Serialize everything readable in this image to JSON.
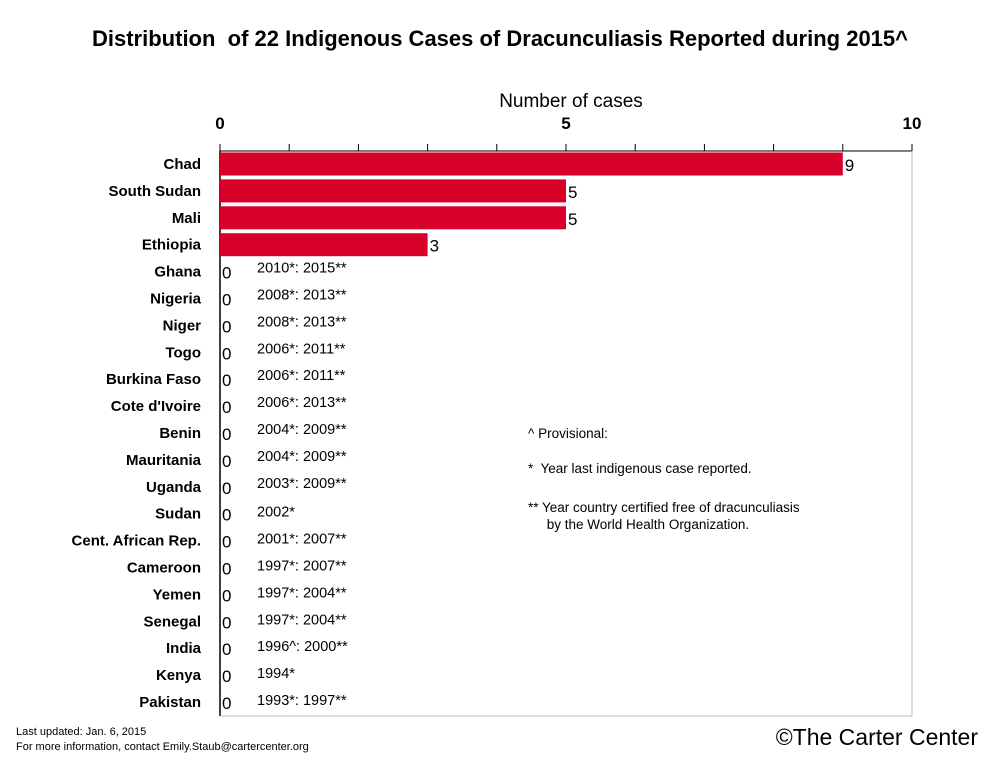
{
  "chart_data": {
    "type": "bar",
    "orientation": "horizontal",
    "title": "Distribution  of 22 Indigenous Cases of Dracunculiasis Reported during 2015^",
    "xlabel": "Number of cases",
    "xlim": [
      0,
      10
    ],
    "ticks": [
      "0",
      "5",
      "10"
    ],
    "bar_color": "#d7002a",
    "categories": [
      "Chad",
      "South Sudan",
      "Mali",
      "Ethiopia",
      "Ghana",
      "Nigeria",
      "Niger",
      "Togo",
      "Burkina Faso",
      "Cote d'Ivoire",
      "Benin",
      "Mauritania",
      "Uganda",
      "Sudan",
      "Cent. African Rep.",
      "Cameroon",
      "Yemen",
      "Senegal",
      "India",
      "Kenya",
      "Pakistan"
    ],
    "values": [
      9,
      5,
      5,
      3,
      0,
      0,
      0,
      0,
      0,
      0,
      0,
      0,
      0,
      0,
      0,
      0,
      0,
      0,
      0,
      0,
      0
    ],
    "value_labels": [
      "9",
      "5",
      "5",
      "3",
      "0",
      "0",
      "0",
      "0",
      "0",
      "0",
      "0",
      "0",
      "0",
      "0",
      "0",
      "0",
      "0",
      "0",
      "0",
      "0",
      "0"
    ],
    "annotations": [
      "",
      "",
      "",
      "",
      "2010*: 2015**",
      "2008*: 2013**",
      "2008*: 2013**",
      "2006*: 2011**",
      "2006*: 2011**",
      "2006*: 2013**",
      "2004*: 2009**",
      "2004*: 2009**",
      "2003*: 2009**",
      "2002*",
      "2001*: 2007**",
      "1997*: 2007**",
      "1997*: 2004**",
      "1997*: 2004**",
      "1996^: 2000**",
      "1994*",
      "1993*: 1997**"
    ],
    "legend_lines": [
      "^ Provisional:",
      "*  Year last indigenous case reported.",
      "** Year country certified free of dracunculiasis",
      "     by the World Health Organization."
    ]
  },
  "footer": {
    "updated": "Last updated: Jan. 6, 2015",
    "contact": "For more information, contact Emily.Staub@cartercenter.org",
    "copyright": "©The Carter Center"
  }
}
